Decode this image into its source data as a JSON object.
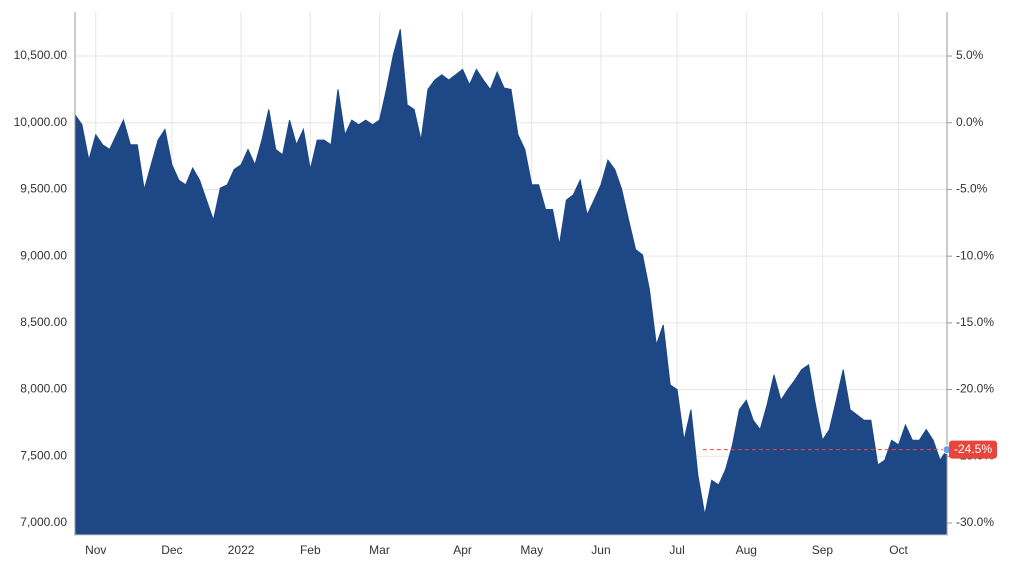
{
  "chart_data": {
    "type": "area",
    "color": "#1d4785",
    "grid": true,
    "categories": [
      null,
      null,
      null,
      "Nov",
      null,
      null,
      null,
      null,
      null,
      null,
      null,
      null,
      null,
      null,
      "Dec",
      null,
      null,
      null,
      null,
      null,
      null,
      null,
      null,
      null,
      "2022",
      null,
      null,
      null,
      null,
      null,
      null,
      null,
      null,
      null,
      "Feb",
      null,
      null,
      null,
      null,
      null,
      null,
      null,
      null,
      null,
      "Mar",
      null,
      null,
      null,
      null,
      null,
      null,
      null,
      null,
      null,
      null,
      null,
      "Apr",
      null,
      null,
      null,
      null,
      null,
      null,
      null,
      null,
      null,
      "May",
      null,
      null,
      null,
      null,
      null,
      null,
      null,
      null,
      null,
      "Jun",
      null,
      null,
      null,
      null,
      null,
      null,
      null,
      null,
      null,
      null,
      "Jul",
      null,
      null,
      null,
      null,
      null,
      null,
      null,
      null,
      null,
      "Aug",
      null,
      null,
      null,
      null,
      null,
      null,
      null,
      null,
      null,
      null,
      "Sep",
      null,
      null,
      null,
      null,
      null,
      null,
      null,
      null,
      null,
      null,
      "Oct",
      null,
      null,
      null,
      null,
      null,
      null,
      null
    ],
    "values": [
      10060,
      9985,
      9720,
      9910,
      9835,
      9800,
      9910,
      10020,
      9835,
      9835,
      9500,
      9685,
      9870,
      9950,
      9685,
      9570,
      9535,
      9660,
      9570,
      9420,
      9270,
      9510,
      9535,
      9650,
      9685,
      9800,
      9685,
      9870,
      10100,
      9800,
      9760,
      10020,
      9835,
      9950,
      9650,
      9870,
      9870,
      9835,
      10250,
      9910,
      10020,
      9985,
      10020,
      9985,
      10020,
      10250,
      10510,
      10700,
      10135,
      10100,
      9870,
      10250,
      10320,
      10360,
      10320,
      10360,
      10400,
      10285,
      10400,
      10320,
      10250,
      10380,
      10260,
      10250,
      9910,
      9800,
      9535,
      9535,
      9350,
      9350,
      9085,
      9420,
      9460,
      9570,
      9310,
      9420,
      9535,
      9720,
      9650,
      9500,
      9270,
      9050,
      9010,
      8750,
      8335,
      8485,
      8035,
      8000,
      7620,
      7850,
      7360,
      7060,
      7320,
      7285,
      7400,
      7585,
      7850,
      7920,
      7770,
      7700,
      7885,
      8110,
      7920,
      8000,
      8070,
      8150,
      8185,
      7885,
      7620,
      7700,
      7920,
      8150,
      7850,
      7810,
      7770,
      7770,
      7435,
      7470,
      7620,
      7585,
      7735,
      7620,
      7620,
      7700,
      7620,
      7470,
      7550
    ],
    "ylim": [
      6910,
      10830
    ],
    "yticks": [
      {
        "value": 7000,
        "label": "7,000.00"
      },
      {
        "value": 7500,
        "label": "7,500.00"
      },
      {
        "value": 8000,
        "label": "8,000.00"
      },
      {
        "value": 8500,
        "label": "8,500.00"
      },
      {
        "value": 9000,
        "label": "9,000.00"
      },
      {
        "value": 9500,
        "label": "9,500.00"
      },
      {
        "value": 10000,
        "label": "10,000.00"
      },
      {
        "value": 10500,
        "label": "10,500.00"
      }
    ],
    "y2lim": [
      -30.9,
      8.3
    ],
    "y2ticks": [
      {
        "value": -30,
        "label": "-30.0%"
      },
      {
        "value": -25,
        "label": "-25.0%"
      },
      {
        "value": -20,
        "label": "-20.0%"
      },
      {
        "value": -15,
        "label": "-15.0%"
      },
      {
        "value": -10,
        "label": "-10.0%"
      },
      {
        "value": -5,
        "label": "-5.0%"
      },
      {
        "value": 0,
        "label": "0.0%"
      },
      {
        "value": 5,
        "label": "5.0%"
      }
    ],
    "current": {
      "value": -24.5,
      "label": "-24.5%",
      "color": "#e5473d"
    }
  }
}
